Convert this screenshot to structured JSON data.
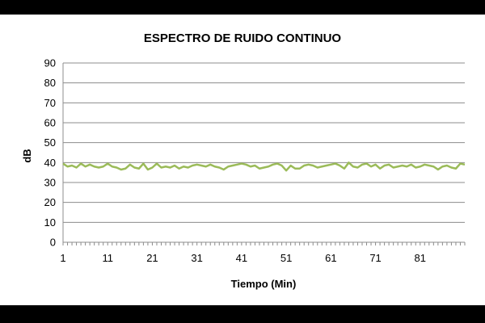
{
  "chart_data": {
    "type": "line",
    "title": "ESPECTRO DE RUIDO CONTINUO",
    "xlabel": "Tiempo (Min)",
    "ylabel": "dB",
    "ylim": [
      0,
      90
    ],
    "yticks": [
      0,
      10,
      20,
      30,
      40,
      50,
      60,
      70,
      80,
      90
    ],
    "xticks": [
      1,
      11,
      21,
      31,
      41,
      51,
      61,
      71,
      81
    ],
    "xlim": [
      1,
      91
    ],
    "grid": "horizontal",
    "legend": "none",
    "series_color": "#9BBB59",
    "series": [
      {
        "values": [
          39.5,
          38,
          38.5,
          37.5,
          39.5,
          38,
          39,
          38,
          37.5,
          38,
          39.5,
          38,
          37.5,
          36.5,
          37,
          39,
          37.5,
          37,
          39.5,
          36.5,
          37.5,
          39.5,
          37.5,
          38,
          37.5,
          38.5,
          37,
          38,
          37.5,
          38.5,
          39,
          38.5,
          38,
          39,
          38,
          37.5,
          36.5,
          38,
          38.5,
          39,
          39.5,
          39,
          38,
          38.5,
          37,
          37.5,
          38,
          39,
          39.5,
          38.5,
          36,
          38.5,
          37,
          37,
          38.5,
          39,
          38.5,
          37.5,
          38,
          38.5,
          39,
          39.5,
          38.5,
          37,
          40,
          38,
          37.5,
          39,
          39.5,
          38,
          39,
          37,
          38.5,
          39,
          37.5,
          38,
          38.5,
          38,
          39,
          37.5,
          38,
          39,
          38.5,
          38,
          36.5,
          38,
          38.5,
          37.5,
          37,
          39.5,
          39
        ]
      }
    ]
  }
}
